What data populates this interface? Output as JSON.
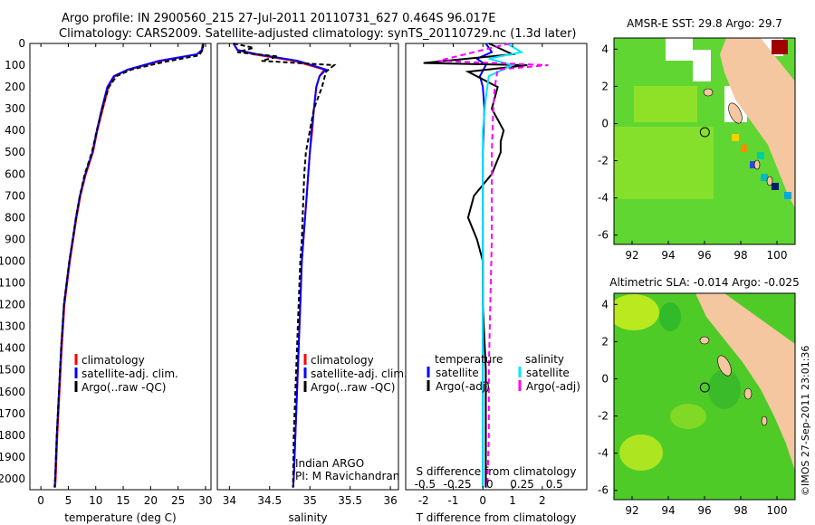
{
  "title": {
    "line1": "Argo profile: IN 2900560_215 27-Jul-2011 20110731_627 0.464S 96.017E",
    "line2": "Climatology: CARS2009. Satellite-adjusted climatology: synTS_20110729.nc (1.3d later)"
  },
  "depth_ticks": [
    0,
    100,
    200,
    300,
    400,
    500,
    600,
    700,
    800,
    900,
    1000,
    1100,
    1200,
    1300,
    1400,
    1500,
    1600,
    1700,
    1800,
    1900,
    2000
  ],
  "colors": {
    "clim": "#ff0000",
    "sat": "#0000ff",
    "argo": "#000000",
    "sat_s": "#00e5ff",
    "argo_s": "#ff00ff",
    "land": "#f5c7a0",
    "ocean": "#3ecf3e"
  },
  "chart_data": [
    {
      "id": "temperature",
      "type": "line",
      "xlabel": "temperature (deg C)",
      "xlim": [
        -2,
        31
      ],
      "ylim": [
        2050,
        0
      ],
      "xticks": [
        0,
        5,
        10,
        15,
        20,
        25,
        30
      ],
      "legend": [
        "climatology",
        "satellite-adj. clim.",
        "Argo(..raw -QC)"
      ],
      "series": [
        {
          "name": "climatology",
          "color": "#ff0000",
          "x": [
            29.5,
            29.3,
            28.5,
            22,
            16,
            13.5,
            12.3,
            11.3,
            10.3,
            9.5,
            8.2,
            7.2,
            6.5,
            5.9,
            5.3,
            4.8,
            4.3,
            3.8,
            3.4,
            3.0,
            2.7,
            2.6
          ],
          "y": [
            0,
            30,
            50,
            80,
            120,
            150,
            200,
            300,
            400,
            500,
            600,
            700,
            800,
            900,
            1000,
            1100,
            1200,
            1400,
            1600,
            1800,
            2000,
            2040
          ]
        },
        {
          "name": "satellite-adj. clim.",
          "color": "#0000ff",
          "x": [
            29.6,
            29.4,
            28.4,
            21.5,
            15.8,
            13.3,
            12.1,
            11.1,
            10.2,
            9.4,
            8.1,
            7.1,
            6.4,
            5.8,
            5.2,
            4.7,
            4.2,
            3.7,
            3.3,
            2.9,
            2.6,
            2.5
          ],
          "y": [
            0,
            30,
            50,
            80,
            120,
            150,
            200,
            300,
            400,
            500,
            600,
            700,
            800,
            900,
            1000,
            1100,
            1200,
            1400,
            1600,
            1800,
            2000,
            2040
          ]
        },
        {
          "name": "Argo(..raw -QC)",
          "color": "#000000",
          "x": [
            29.6,
            29.5,
            28.8,
            22.5,
            16.5,
            13.8,
            12.4,
            11.2,
            10.2,
            9.3,
            8.0,
            7.1,
            6.4,
            5.8,
            5.2,
            4.7,
            4.2,
            3.7,
            3.3,
            2.9,
            2.6,
            2.5
          ],
          "y": [
            0,
            30,
            55,
            85,
            120,
            150,
            200,
            300,
            400,
            500,
            600,
            700,
            800,
            900,
            1000,
            1100,
            1200,
            1400,
            1600,
            1800,
            2000,
            2040
          ]
        }
      ]
    },
    {
      "id": "salinity",
      "type": "line",
      "xlabel": "salinity",
      "xlim": [
        33.85,
        36.1
      ],
      "ylim": [
        2050,
        0
      ],
      "xticks": [
        34,
        34.5,
        35,
        35.5,
        36
      ],
      "legend": [
        "climatology",
        "satellite-adj. clim.",
        "Argo(..raw -QC)"
      ],
      "annotations": [
        "Indian ARGO",
        "PI: M Ravichandran"
      ],
      "series": [
        {
          "name": "climatology",
          "color": "#ff0000",
          "x": [
            34.05,
            34.1,
            34.3,
            34.8,
            35.18,
            35.12,
            35.08,
            35.05,
            35.03,
            35.0,
            34.98,
            34.96,
            34.94,
            34.92,
            34.9,
            34.88,
            34.86,
            34.84,
            34.82,
            34.8,
            34.79
          ],
          "y": [
            0,
            30,
            50,
            80,
            120,
            150,
            200,
            300,
            400,
            500,
            600,
            700,
            800,
            900,
            1000,
            1200,
            1400,
            1600,
            1800,
            2000,
            2040
          ]
        },
        {
          "name": "satellite-adj. clim.",
          "color": "#0000ff",
          "x": [
            34.05,
            34.1,
            34.35,
            34.85,
            35.2,
            35.12,
            35.08,
            35.05,
            35.02,
            35.0,
            34.98,
            34.96,
            34.94,
            34.92,
            34.9,
            34.88,
            34.86,
            34.84,
            34.82,
            34.8,
            34.79
          ],
          "y": [
            0,
            30,
            50,
            80,
            120,
            150,
            200,
            300,
            400,
            500,
            600,
            700,
            800,
            900,
            1000,
            1200,
            1400,
            1600,
            1800,
            2000,
            2040
          ]
        },
        {
          "name": "Argo(..raw -QC)",
          "color": "#000000",
          "x": [
            34.05,
            34.3,
            34.1,
            34.6,
            34.4,
            35.3,
            35.2,
            35.15,
            35.05,
            35.0,
            34.95,
            34.93,
            34.92,
            34.91,
            34.9,
            34.88,
            34.86,
            34.84,
            34.82,
            34.8,
            34.79
          ],
          "y": [
            0,
            20,
            40,
            60,
            80,
            100,
            130,
            200,
            300,
            400,
            500,
            600,
            700,
            800,
            900,
            1000,
            1200,
            1400,
            1600,
            1800,
            2040
          ]
        }
      ]
    },
    {
      "id": "difference",
      "type": "line",
      "xlabel": "T difference from climatology",
      "xlabel2": "S difference from climatology",
      "xlim": [
        -2.6,
        3.5
      ],
      "ylim": [
        2050,
        0
      ],
      "xticks": [
        -2,
        -1,
        0,
        1,
        2
      ],
      "xticks_s": [
        -0.5,
        -0.25,
        0,
        0.25,
        0.5
      ],
      "legend_headers": [
        "temperature",
        "salinity"
      ],
      "legend": [
        "satellite",
        "Argo(-adj)",
        "satellite",
        "Argo(-adj)"
      ],
      "series": [
        {
          "name": "T satellite",
          "color": "#0000ff",
          "x": [
            0.1,
            0.3,
            -0.2,
            0.1,
            -0.1,
            0.0,
            0.05,
            0.0,
            0.0,
            0.0,
            0.0,
            0.0,
            0.0,
            0.0,
            0.0
          ],
          "y": [
            0,
            40,
            70,
            100,
            150,
            200,
            300,
            500,
            700,
            900,
            1100,
            1400,
            1700,
            2000,
            2040
          ]
        },
        {
          "name": "T Argo(-adj)",
          "color": "#000000",
          "x": [
            0.2,
            1.0,
            -2.0,
            1.5,
            -0.5,
            0.5,
            0.3,
            0.7,
            0.6,
            0.6,
            0.3,
            -0.3,
            -0.5,
            -0.2,
            0.0,
            0.0,
            0.1,
            0.1,
            0.1
          ],
          "y": [
            0,
            50,
            90,
            100,
            130,
            200,
            300,
            400,
            450,
            500,
            600,
            700,
            800,
            900,
            1000,
            1200,
            1500,
            1800,
            2040
          ]
        },
        {
          "name": "S satellite",
          "color": "#00e5ff",
          "x": [
            0.8,
            1.3,
            0.2,
            1.0,
            0.2,
            0.1,
            0.0,
            0.0,
            0.0,
            0.0,
            0.0,
            0.0,
            0.0
          ],
          "y": [
            0,
            40,
            70,
            100,
            150,
            250,
            400,
            600,
            800,
            1100,
            1500,
            1800,
            2040
          ]
        },
        {
          "name": "S Argo(-adj)",
          "color": "#ff00ff",
          "x": [
            0.9,
            -1.5,
            2.2,
            0.5,
            0.4,
            0.35,
            0.3,
            0.3,
            0.3,
            0.25,
            0.2,
            0.2,
            0.15
          ],
          "y": [
            0,
            80,
            100,
            120,
            200,
            300,
            500,
            700,
            900,
            1200,
            1500,
            1800,
            2040
          ]
        }
      ]
    },
    {
      "id": "sst_map",
      "type": "heatmap",
      "title": "AMSR-E SST: 29.8  Argo: 29.7",
      "xlim": [
        91,
        101
      ],
      "ylim": [
        -6.5,
        4.6
      ],
      "xticks": [
        92,
        94,
        96,
        98,
        100
      ],
      "yticks": [
        -6,
        -4,
        -2,
        0,
        2,
        4
      ],
      "marker": {
        "lon": 96.017,
        "lat": -0.464
      }
    },
    {
      "id": "sla_map",
      "type": "heatmap",
      "title": "Altimetric SLA: -0.014  Argo: -0.025",
      "xlim": [
        91,
        101
      ],
      "ylim": [
        -6.5,
        4.6
      ],
      "xticks": [
        92,
        94,
        96,
        98,
        100
      ],
      "yticks": [
        -6,
        -4,
        -2,
        0,
        2,
        4
      ],
      "marker": {
        "lon": 96.017,
        "lat": -0.464
      }
    }
  ],
  "watermark": "©IMOS 27-Sep-2011 23:01:36"
}
